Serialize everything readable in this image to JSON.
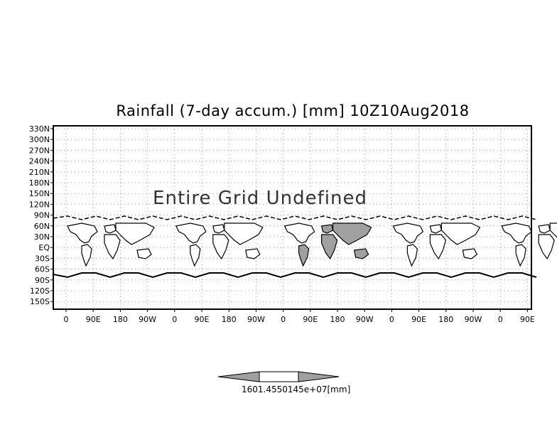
{
  "title": "Rainfall (7-day accum.) [mm] 10Z10Aug2018",
  "message": "Entire Grid Undefined",
  "y_tick_labels": [
    "330N",
    "300N",
    "270N",
    "240N",
    "210N",
    "180N",
    "150N",
    "120N",
    "90N",
    "60N",
    "30N",
    "EQ",
    "30S",
    "60S",
    "90S",
    "120S",
    "150S"
  ],
  "x_tick_labels": [
    "0",
    "90E",
    "180",
    "90W",
    "0",
    "90E",
    "180",
    "90W",
    "0",
    "90E",
    "180",
    "90W",
    "0",
    "90E",
    "180",
    "90W",
    "0",
    "90E"
  ],
  "colorbar": {
    "label": "1601.4550145e+07[mm]",
    "colors": [
      "#a0a0a0",
      "#ffffff",
      "#a0a0a0"
    ]
  },
  "colors": {
    "land_fill": "#ffffff",
    "highlight_fill": "#a0a0a0",
    "grid": "#9a9a9a"
  }
}
